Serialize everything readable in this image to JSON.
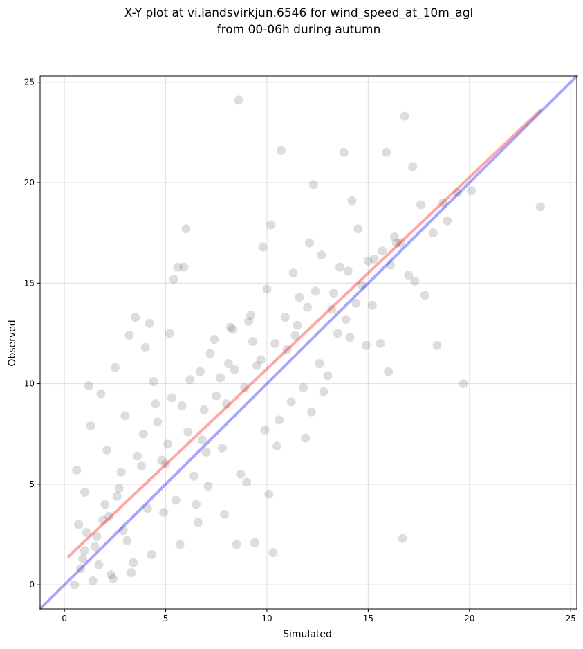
{
  "chart_data": {
    "type": "scatter",
    "title": "X-Y plot at vi.landsvirkjun.6546 for wind_speed_at_10m_agl",
    "subtitle": "from 00-06h during autumn",
    "xlabel": "Simulated",
    "ylabel": "Observed",
    "xlim": [
      -1.2,
      25.3
    ],
    "ylim": [
      -1.2,
      25.3
    ],
    "xticks": [
      0,
      5,
      10,
      15,
      20,
      25
    ],
    "yticks": [
      0,
      5,
      10,
      15,
      20,
      25
    ],
    "grid": true,
    "point_color": "#444444",
    "point_opacity": 0.18,
    "series": [
      {
        "x": [
          8.6,
          10.7,
          13.8,
          15.9,
          16.8,
          14.2,
          12.3,
          17.2,
          16.6,
          17.8,
          19.4,
          18.4,
          23.5,
          19.7,
          16.7,
          10.3,
          9.4,
          8.5,
          6.0,
          5.9,
          5.6,
          5.4,
          5.2,
          3.5,
          3.2,
          4.2,
          4.0,
          1.2,
          1.3,
          1.8,
          2.5,
          0.6,
          1.0,
          2.2,
          18.9,
          18.2,
          16.0,
          15.6,
          17.3,
          14.5,
          13.9,
          15.2,
          13.5,
          12.6,
          9.8,
          10.2,
          11.3,
          12.1,
          11.6,
          11.0,
          7.4,
          6.9,
          7.7,
          8.1,
          9.2,
          4.8,
          3.9,
          2.8,
          1.6,
          0.9,
          2.0,
          3.0,
          4.5,
          5.1,
          6.4,
          7.0,
          8.9,
          9.5,
          10.6,
          12.8,
          13.2,
          14.7,
          15.3,
          11.9,
          10.1,
          8.7,
          7.8,
          6.6,
          5.7,
          4.3,
          3.3,
          2.4,
          1.4,
          0.8,
          1.1,
          1.9,
          2.7,
          3.6,
          4.6,
          5.3,
          6.2,
          7.2,
          8.3,
          9.1,
          10.4,
          11.5,
          12.4,
          13.6,
          14.4,
          15.7,
          16.3,
          17.6,
          18.7,
          20.1,
          13.0,
          11.2,
          9.9,
          8.0,
          6.8,
          5.5,
          4.1,
          2.9,
          1.7,
          0.5,
          1.5,
          2.6,
          3.8,
          5.0,
          6.1,
          7.5,
          8.4,
          9.7,
          10.9,
          12.0,
          13.3,
          14.0,
          15.0,
          16.4,
          6.5,
          7.9,
          9.0,
          10.5,
          11.8,
          3.1,
          2.1,
          1.0,
          0.7,
          4.4,
          5.8,
          6.7,
          8.2,
          9.3,
          10.0,
          11.4,
          12.7,
          14.1,
          14.9,
          16.1,
          17.0,
          12.2,
          7.1,
          4.9,
          3.4,
          2.3
        ],
        "y": [
          24.1,
          21.6,
          21.5,
          21.5,
          23.3,
          19.1,
          19.9,
          20.8,
          17.0,
          14.4,
          19.5,
          11.9,
          18.8,
          10.0,
          2.3,
          1.6,
          2.1,
          2.0,
          17.7,
          15.8,
          15.8,
          15.2,
          12.5,
          13.3,
          12.4,
          13.0,
          11.8,
          9.9,
          7.9,
          9.5,
          10.8,
          5.7,
          4.6,
          3.4,
          18.1,
          17.5,
          10.6,
          12.0,
          15.1,
          17.7,
          13.2,
          13.9,
          12.5,
          11.0,
          16.8,
          17.9,
          15.5,
          17.0,
          14.3,
          11.7,
          12.2,
          8.7,
          10.3,
          11.0,
          13.4,
          6.2,
          7.5,
          5.6,
          2.4,
          1.3,
          4.0,
          8.4,
          9.0,
          7.0,
          5.4,
          6.6,
          9.8,
          10.9,
          8.2,
          9.6,
          13.7,
          14.9,
          16.2,
          7.3,
          4.5,
          5.5,
          6.8,
          3.1,
          2.0,
          1.5,
          0.6,
          0.3,
          0.2,
          0.8,
          2.6,
          3.2,
          4.8,
          6.4,
          8.1,
          9.3,
          10.2,
          11.5,
          12.7,
          13.1,
          12.0,
          12.9,
          14.6,
          15.8,
          14.0,
          16.6,
          17.3,
          18.9,
          19.0,
          19.6,
          10.4,
          9.1,
          7.7,
          9.0,
          7.2,
          4.2,
          3.8,
          2.7,
          1.0,
          0.0,
          1.9,
          4.4,
          5.9,
          6.0,
          7.6,
          9.4,
          10.7,
          11.2,
          13.3,
          13.8,
          14.5,
          15.6,
          16.1,
          17.0,
          4.0,
          3.5,
          5.1,
          6.9,
          9.8,
          2.2,
          6.7,
          1.7,
          3.0,
          10.1,
          8.9,
          10.6,
          12.8,
          12.1,
          14.7,
          12.4,
          16.4,
          12.3,
          11.9,
          15.9,
          15.4,
          8.6,
          4.9,
          3.6,
          1.1,
          0.5
        ]
      }
    ],
    "lines": [
      {
        "color": "#0000ff",
        "opacity": 0.35,
        "x": [
          -1.2,
          25.3
        ],
        "y": [
          -1.2,
          25.3
        ]
      },
      {
        "color": "#ff0000",
        "opacity": 0.35,
        "x": [
          0.2,
          23.5
        ],
        "y": [
          1.4,
          23.6
        ]
      }
    ]
  }
}
